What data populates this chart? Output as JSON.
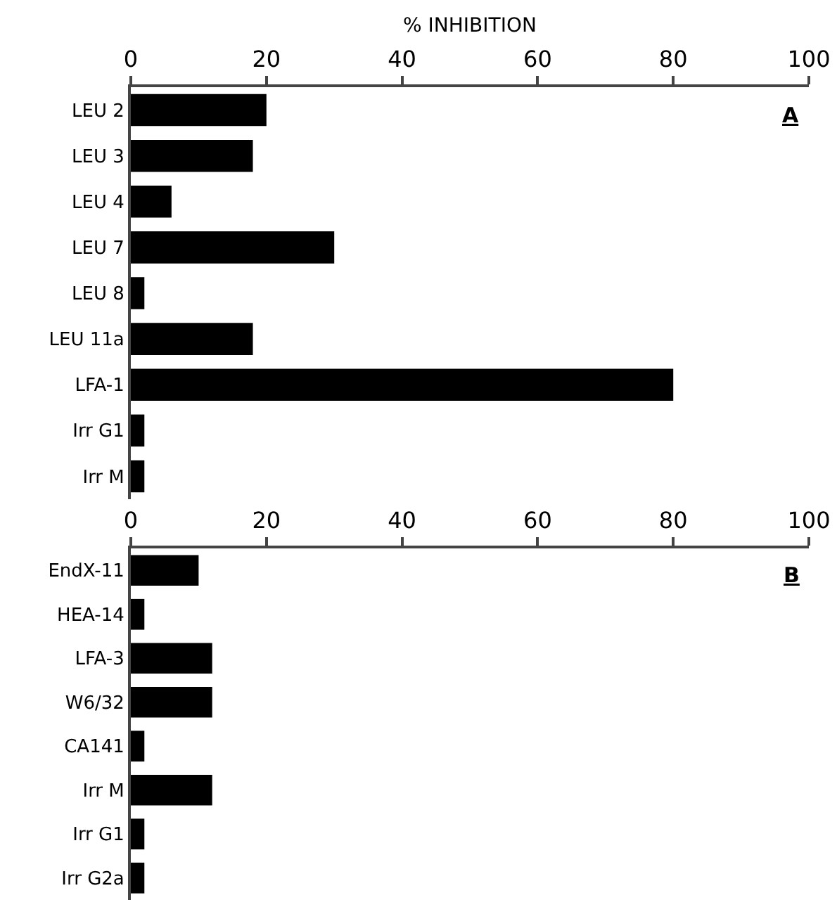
{
  "chart_data": [
    {
      "type": "bar",
      "orientation": "horizontal",
      "xlabel": "% INHIBITION",
      "categories": [
        "LEU 2",
        "LEU 3",
        "LEU 4",
        "LEU 7",
        "LEU 8",
        "LEU 11a",
        "LFA-1",
        "Irr G1",
        "Irr M"
      ],
      "values": [
        20,
        18,
        6,
        30,
        2,
        18,
        80,
        2,
        2
      ],
      "color": "#000000",
      "xlim": [
        0,
        100
      ],
      "xticks": [
        0,
        20,
        40,
        60,
        80,
        100
      ],
      "grid": false,
      "annotations": [
        "A"
      ]
    },
    {
      "type": "bar",
      "orientation": "horizontal",
      "categories": [
        "EndX-11",
        "HEA-14",
        "LFA-3",
        "W6/32",
        "CA141",
        "Irr M",
        "Irr G1",
        "Irr G2a"
      ],
      "values": [
        10,
        2,
        12,
        12,
        2,
        12,
        2,
        2
      ],
      "color": "#000000",
      "xlim": [
        0,
        100
      ],
      "xticks": [
        0,
        20,
        40,
        60,
        80,
        100
      ],
      "grid": false,
      "annotations": [
        "B"
      ]
    }
  ]
}
